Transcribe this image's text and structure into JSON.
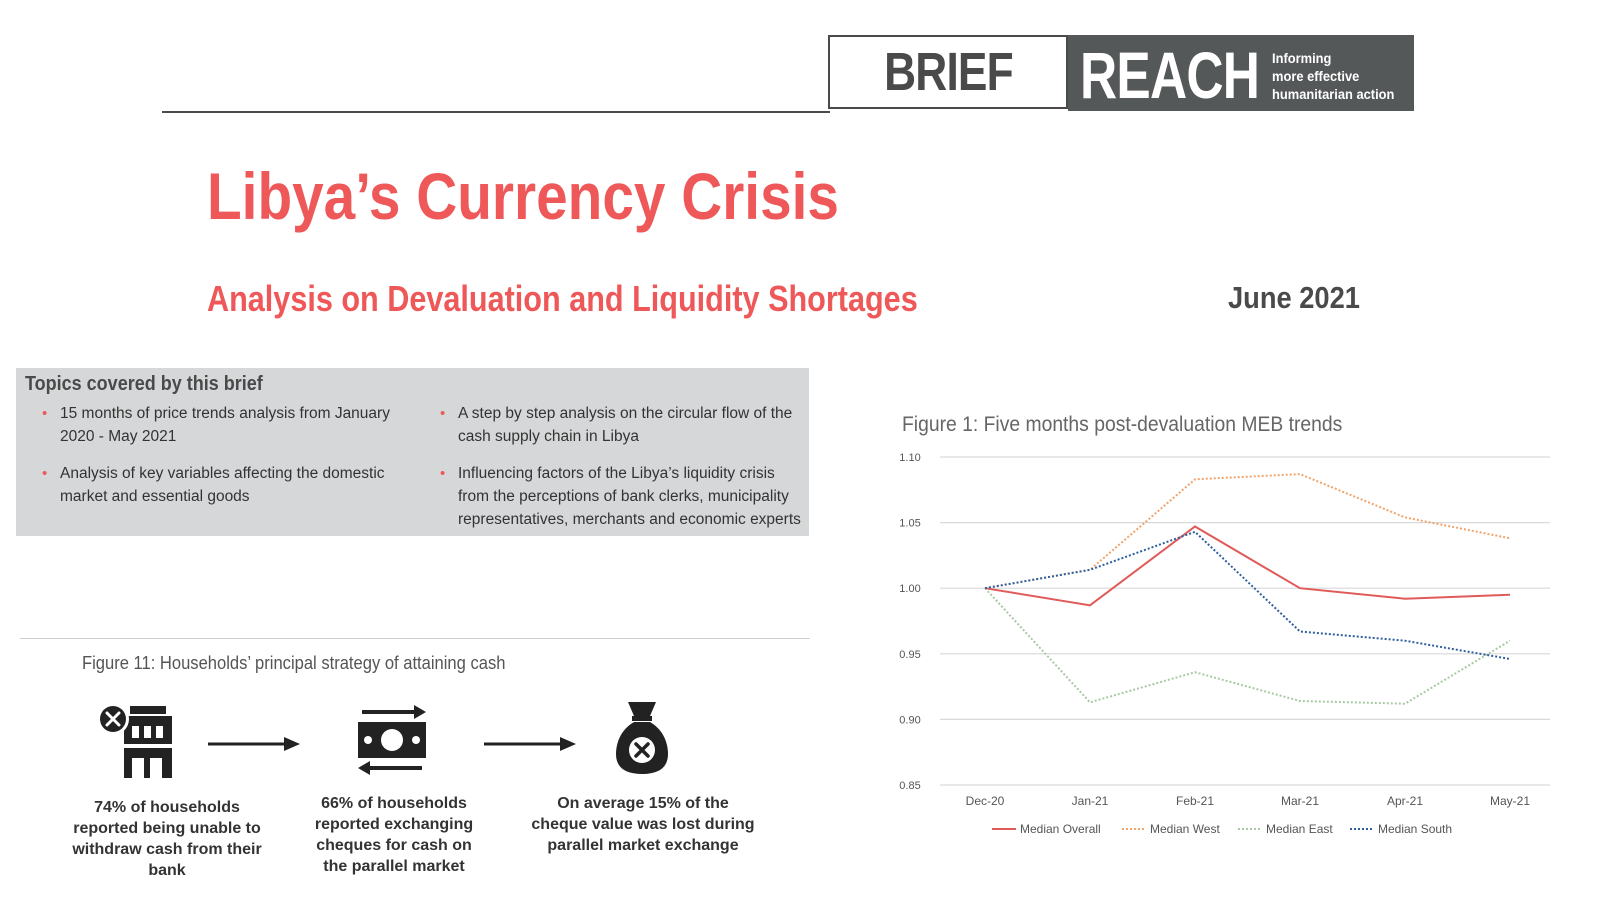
{
  "header": {
    "brief_label": "BRIEF",
    "reach_label": "REACH",
    "tagline": [
      "Informing",
      "more effective",
      "humanitarian action"
    ]
  },
  "title": "Libya’s Currency Crisis",
  "subtitle": "Analysis on Devaluation and Liquidity Shortages",
  "date": "June 2021",
  "topics": {
    "heading": "Topics covered by this brief",
    "bullet_char": "•",
    "items": [
      "15 months of price trends analysis from January 2020 - May 2021",
      "Analysis of key variables affecting the domestic market and essential goods",
      "A step by step analysis on the circular flow of the cash supply chain in Libya",
      "Influencing factors of the Libya’s liquidity crisis from the perceptions of bank clerks, municipality representatives, merchants and economic experts"
    ]
  },
  "figure11": {
    "title": "Figure 11: Households’ principal strategy of attaining cash",
    "steps": [
      {
        "icon": "bank-closed-icon",
        "text": "74% of households reported being unable to withdraw cash from their bank"
      },
      {
        "icon": "cash-exchange-icon",
        "text": "66% of households reported exchanging cheques for cash on the parallel market"
      },
      {
        "icon": "money-bag-loss-icon",
        "text": "On average 15% of the cheque value was lost during parallel market exchange"
      }
    ]
  },
  "figure1": {
    "title": "Figure 1: Five months post-devaluation MEB trends"
  },
  "chart_data": {
    "type": "line",
    "title": "Figure 1: Five months post-devaluation MEB trends",
    "categories": [
      "Dec-20",
      "Jan-21",
      "Feb-21",
      "Mar-21",
      "Apr-21",
      "May-21"
    ],
    "y_ticks": [
      "0.85",
      "0.90",
      "0.95",
      "1.00",
      "1.05",
      "1.10"
    ],
    "y_tick_values": [
      0.85,
      0.9,
      0.95,
      1.0,
      1.05,
      1.1
    ],
    "ylim": [
      0.85,
      1.1
    ],
    "grid": true,
    "legend_position": "bottom",
    "series": [
      {
        "name": "Median Overall",
        "color": "#e05a5a",
        "style": "solid",
        "values": [
          1.0,
          0.987,
          1.047,
          1.0,
          0.992,
          0.995
        ]
      },
      {
        "name": "Median West",
        "color": "#f0a36b",
        "style": "dotted",
        "values": [
          1.0,
          1.014,
          1.083,
          1.087,
          1.054,
          1.038
        ]
      },
      {
        "name": "Median East",
        "color": "#a9c8a4",
        "style": "dotted",
        "values": [
          1.0,
          0.913,
          0.936,
          0.914,
          0.912,
          0.96
        ]
      },
      {
        "name": "Median South",
        "color": "#2f5f9e",
        "style": "dotted",
        "values": [
          1.0,
          1.014,
          1.043,
          0.967,
          0.96,
          0.946
        ]
      }
    ]
  }
}
